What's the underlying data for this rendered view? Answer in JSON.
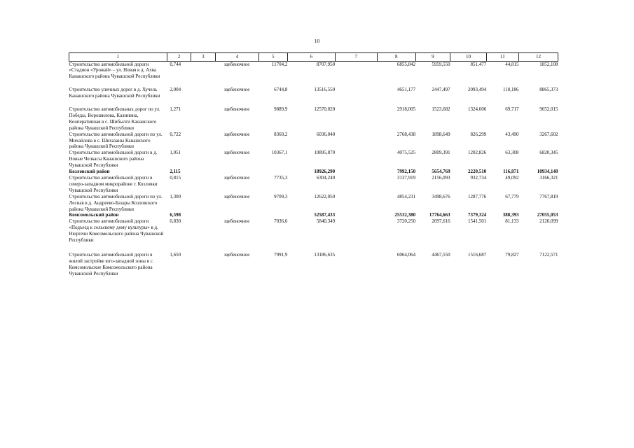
{
  "page_number": "10",
  "header": [
    "1",
    "2",
    "3",
    "4",
    "5",
    "6",
    "7",
    "8",
    "9",
    "10",
    "11",
    "12"
  ],
  "rows": [
    {
      "type": "object",
      "name": "Строительство автомобильной дороги «Стадион «Урожай» – ул. Новая в д. Ахва Канашского района Чувашской Республики",
      "c2": "0,744",
      "c3": "",
      "c4": "щебеночное",
      "c5": "11704,2",
      "c6": "8707,950",
      "c7": "",
      "c8": "6855,842",
      "c9": "5959,550",
      "c10": "851,477",
      "c11": "44,815",
      "c12": "1852,108"
    },
    {
      "type": "object",
      "name": "Строительство уличных дорог в д. Хучель Канашского района Чувашской Республики",
      "c2": "2,004",
      "c3": "",
      "c4": "щебеночное",
      "c5": "6744,8",
      "c6": "13516,550",
      "c7": "",
      "c8": "4651,177",
      "c9": "2447,497",
      "c10": "2093,494",
      "c11": "110,186",
      "c12": "8865,373"
    },
    {
      "type": "object",
      "name": "Строительство автомобильных дорог по ул. Победы, Ворошилова, Калинина, Кооперативная в с. Шибылги Канашского района Чувашской Республики",
      "c2": "1,271",
      "c3": "",
      "c4": "щебеночное",
      "c5": "9889,9",
      "c6": "12570,020",
      "c7": "",
      "c8": "2918,005",
      "c9": "1523,682",
      "c10": "1324,606",
      "c11": "69,717",
      "c12": "9652,015"
    },
    {
      "type": "object",
      "name": "Строительство автомобильной дороги по ул. Михайлова в с. Шихазаны Канашского района Чувашской Республики",
      "c2": "0,722",
      "c3": "",
      "c4": "щебеночное",
      "c5": "8360,2",
      "c6": "6036,040",
      "c7": "",
      "c8": "2768,438",
      "c9": "1898,649",
      "c10": "826,299",
      "c11": "43,490",
      "c12": "3267,602"
    },
    {
      "type": "object",
      "name": "Строительство автомобильной дороги в д. Новые Челкасы Канашского района Чувашской Республики",
      "c2": "1,051",
      "c3": "",
      "c4": "щебеночное",
      "c5": "10367,1",
      "c6": "10895,870",
      "c7": "",
      "c8": "4075,525",
      "c9": "2809,391",
      "c10": "1202,826",
      "c11": "63,308",
      "c12": "6820,345"
    },
    {
      "type": "district",
      "name": "Козловский район",
      "c2": "2,115",
      "c3": "",
      "c4": "",
      "c5": "",
      "c6": "18926,290",
      "c7": "",
      "c8": "7992,150",
      "c9": "5654,769",
      "c10": "2220,510",
      "c11": "116,871",
      "c12": "10934,140"
    },
    {
      "type": "object",
      "name": "Строительство автомобильной дороги в северо-западном микрорайоне г. Козловки Чувашской Республики",
      "c2": "0,815",
      "c3": "",
      "c4": "щебеночное",
      "c5": "7735,3",
      "c6": "6304,240",
      "c7": "",
      "c8": "3137,919",
      "c9": "2156,093",
      "c10": "932,734",
      "c11": "49,092",
      "c12": "3166,321"
    },
    {
      "type": "object",
      "name": "Строительство автомобильной дороги по ул. Лесная в д. Андреево-Базары Козловского района Чувашской Республики",
      "c2": "1,300",
      "c3": "",
      "c4": "щебеночное",
      "c5": "9709,3",
      "c6": "12622,050",
      "c7": "",
      "c8": "4854,231",
      "c9": "3498,676",
      "c10": "1287,776",
      "c11": "67,779",
      "c12": "7767,819"
    },
    {
      "type": "district",
      "name": "Комсомольский район",
      "c2": "6,598",
      "c3": "",
      "c4": "",
      "c5": "",
      "c6": "52587,433",
      "c7": "",
      "c8": "25532,380",
      "c9": "17764,663",
      "c10": "7379,324",
      "c11": "388,393",
      "c12": "27055,053"
    },
    {
      "type": "object",
      "name": "Строительство автомобильной дороги «Подъезд к сельскому дому культуры» в д. Нюргечи Комсомольского района Чувашской Республики",
      "c2": "0,830",
      "c3": "",
      "c4": "щебеночное",
      "c5": "7036,6",
      "c6": "5840,349",
      "c7": "",
      "c8": "3720,250",
      "c9": "2097,616",
      "c10": "1541,501",
      "c11": "81,133",
      "c12": "2120,099"
    },
    {
      "type": "object",
      "name": "Строительство автомобильной дороги в жилой застройке юго-западной зоны в с. Комсомольское Комсомольского района Чувашской Республики",
      "c2": "1,650",
      "c3": "",
      "c4": "щебеночное",
      "c5": "7991,9",
      "c6": "13186,635",
      "c7": "",
      "c8": "6064,064",
      "c9": "4467,550",
      "c10": "1516,687",
      "c11": "79,827",
      "c12": "7122,571"
    }
  ]
}
